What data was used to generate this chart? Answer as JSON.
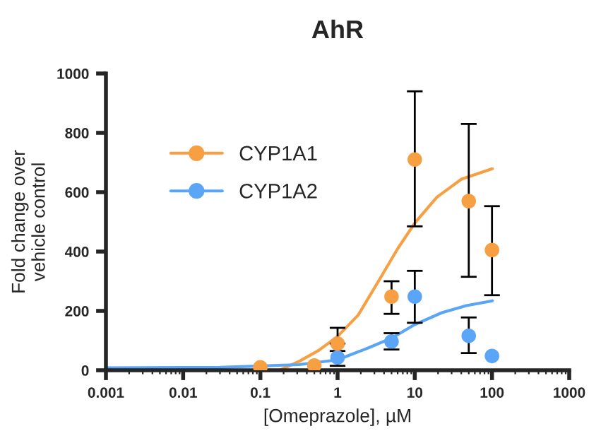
{
  "chart_data": {
    "type": "scatter",
    "title": "AhR",
    "xlabel": "[Omeprazole], µM",
    "ylabel": "Fold change over\nvehicle control",
    "log": "x",
    "xlim": [
      0.001,
      1000
    ],
    "xticks": [
      0.001,
      0.01,
      0.1,
      1,
      10,
      100,
      1000
    ],
    "ylim": [
      0,
      1000
    ],
    "yticks": [
      0,
      200,
      400,
      600,
      800,
      1000
    ],
    "grid": false,
    "legend": "top left",
    "marker": "circle",
    "series": [
      {
        "type": "line",
        "marker": "none",
        "color": "#f7a043",
        "x": [
          0.177,
          0.318,
          0.57,
          1,
          1.85,
          3.33,
          5.98,
          10,
          19.3,
          40.2,
          101
        ],
        "values": [
          0,
          30,
          67,
          114,
          186,
          297,
          409,
          496,
          583,
          644,
          679
        ]
      },
      {
        "type": "line",
        "marker": "none",
        "color": "#5aa5f5",
        "x": [
          0.001,
          0.03,
          0.318,
          1,
          2.48,
          5.17,
          10,
          22.4,
          46.6,
          101
        ],
        "values": [
          8,
          10,
          19,
          35,
          75,
          110,
          154,
          194,
          218,
          234
        ]
      },
      {
        "name": "CYP1A2",
        "color": "#5aa5f5",
        "x": [
          1,
          5,
          10,
          50,
          100
        ],
        "values": [
          43,
          97,
          248,
          116,
          48
        ],
        "errors": [
          [
            15,
            65
          ],
          [
            70,
            125
          ],
          [
            160,
            335
          ],
          [
            58,
            178
          ],
          null
        ]
      },
      {
        "name": "CYP1A1",
        "color": "#f7a043",
        "x": [
          0.1,
          0.5,
          1,
          5,
          10,
          50,
          100
        ],
        "values": [
          10,
          16,
          90,
          248,
          710,
          570,
          405
        ],
        "errors": [
          null,
          null,
          [
            90,
            143
          ],
          [
            190,
            300
          ],
          [
            485,
            940
          ],
          [
            315,
            830
          ],
          [
            253,
            553
          ]
        ]
      }
    ]
  }
}
